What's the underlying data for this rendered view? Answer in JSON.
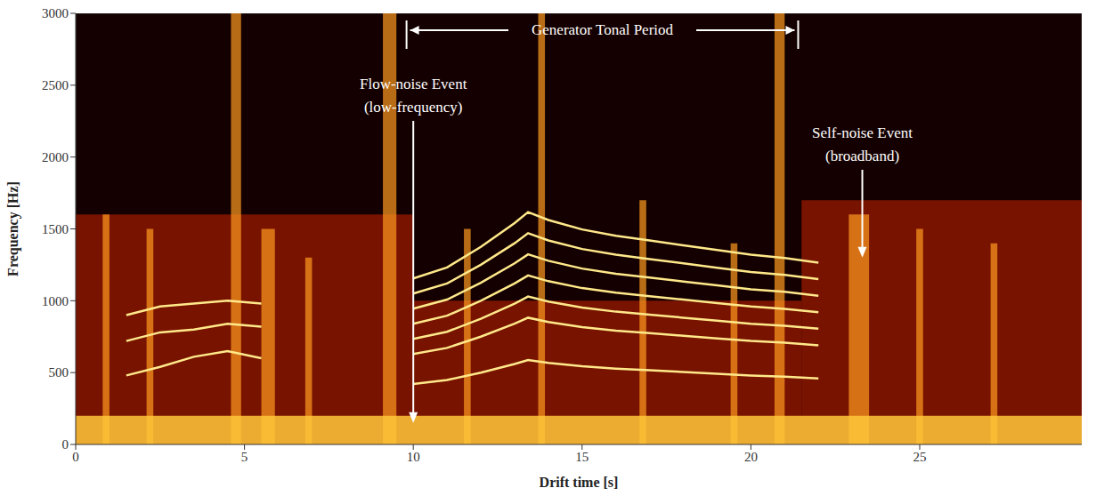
{
  "chart_data": {
    "type": "spectrogram",
    "xlabel": "Drift time [s]",
    "ylabel": "Frequency [Hz]",
    "xlim": [
      0,
      29.8
    ],
    "xticks": [
      0,
      5,
      10,
      15,
      20,
      25
    ],
    "ylim": [
      0,
      3000
    ],
    "yticks": [
      0,
      500,
      1000,
      1500,
      2000,
      2500,
      3000
    ],
    "grid": false,
    "period": {
      "text": "Generator Tonal Period",
      "start": 9.8,
      "end": 21.4
    },
    "annotations": [
      {
        "lines": [
          "Flow-noise Event",
          "(low-frequency)"
        ],
        "x": 10,
        "y": 150
      },
      {
        "lines": [
          "Self-noise Event",
          "(broadband)"
        ],
        "x": 23.3,
        "y": 1300
      }
    ],
    "noise_floor": [
      {
        "start": 0,
        "end": 10,
        "fmax": 1600
      },
      {
        "start": 10,
        "end": 21.5,
        "fmax": 1000
      },
      {
        "start": 21.5,
        "end": 29.8,
        "fmax": 1700
      }
    ],
    "low_frequency_band": {
      "start": 0,
      "end": 29.8,
      "fmax": 200
    },
    "noise_bursts": [
      {
        "start": 0.8,
        "end": 1.0,
        "fmax": 1600
      },
      {
        "start": 2.1,
        "end": 2.3,
        "fmax": 1500
      },
      {
        "start": 4.6,
        "end": 4.9,
        "fmax": 3000
      },
      {
        "start": 5.5,
        "end": 5.9,
        "fmax": 1500
      },
      {
        "start": 6.8,
        "end": 7.0,
        "fmax": 1300
      },
      {
        "start": 9.1,
        "end": 9.5,
        "fmax": 3000
      },
      {
        "start": 11.5,
        "end": 11.7,
        "fmax": 1500
      },
      {
        "start": 13.7,
        "end": 13.9,
        "fmax": 3000
      },
      {
        "start": 16.7,
        "end": 16.9,
        "fmax": 1700
      },
      {
        "start": 19.4,
        "end": 19.6,
        "fmax": 1400
      },
      {
        "start": 20.7,
        "end": 21.0,
        "fmax": 3000
      },
      {
        "start": 22.9,
        "end": 23.5,
        "fmax": 1600
      },
      {
        "start": 24.9,
        "end": 25.1,
        "fmax": 1500
      },
      {
        "start": 27.1,
        "end": 27.3,
        "fmax": 1400
      }
    ],
    "series": [
      {
        "color": "#ffe98a",
        "x": [
          10,
          11,
          12,
          13,
          13.4,
          14,
          15,
          16,
          17,
          18,
          19,
          20,
          21,
          22
        ],
        "values": [
          420,
          448,
          500,
          560,
          588,
          568,
          544,
          528,
          516,
          504,
          492,
          480,
          472,
          460
        ]
      },
      {
        "color": "#ffe98a",
        "x": [
          10,
          11,
          12,
          13,
          13.4,
          14,
          15,
          16,
          17,
          18,
          19,
          20,
          21,
          22
        ],
        "values": [
          630,
          672,
          750,
          840,
          882,
          852,
          816,
          792,
          774,
          756,
          738,
          720,
          708,
          690
        ]
      },
      {
        "color": "#ffe98a",
        "x": [
          10,
          11,
          12,
          13,
          13.4,
          14,
          15,
          16,
          17,
          18,
          19,
          20,
          21,
          22
        ],
        "values": [
          735,
          784,
          875,
          980,
          1029,
          994,
          952,
          924,
          903,
          882,
          861,
          840,
          826,
          805
        ]
      },
      {
        "color": "#ffe98a",
        "x": [
          10,
          11,
          12,
          13,
          13.4,
          14,
          15,
          16,
          17,
          18,
          19,
          20,
          21,
          22
        ],
        "values": [
          840,
          896,
          1000,
          1120,
          1176,
          1136,
          1088,
          1056,
          1032,
          1008,
          984,
          960,
          944,
          920
        ]
      },
      {
        "color": "#ffe98a",
        "x": [
          10,
          11,
          12,
          13,
          13.4,
          14,
          15,
          16,
          17,
          18,
          19,
          20,
          21,
          22
        ],
        "values": [
          945,
          1008,
          1125,
          1260,
          1323,
          1278,
          1224,
          1188,
          1161,
          1134,
          1107,
          1080,
          1062,
          1035
        ]
      },
      {
        "color": "#ffe98a",
        "x": [
          10,
          11,
          12,
          13,
          13.4,
          14,
          15,
          16,
          17,
          18,
          19,
          20,
          21,
          22
        ],
        "values": [
          1050,
          1120,
          1250,
          1400,
          1470,
          1420,
          1360,
          1320,
          1290,
          1260,
          1230,
          1200,
          1180,
          1150
        ]
      },
      {
        "color": "#ffe98a",
        "x": [
          10,
          11,
          12,
          13,
          13.4,
          14,
          15,
          16,
          17,
          18,
          19,
          20,
          21,
          22
        ],
        "values": [
          1155,
          1232,
          1375,
          1540,
          1617,
          1562,
          1496,
          1452,
          1419,
          1386,
          1353,
          1320,
          1298,
          1265
        ]
      },
      {
        "color": "#ffe98a",
        "x": [
          1.5,
          2.5,
          3.5,
          4.5,
          5.5
        ],
        "values": [
          480,
          540,
          610,
          650,
          600
        ]
      },
      {
        "color": "#ffe98a",
        "x": [
          1.5,
          2.5,
          3.5,
          4.5,
          5.5
        ],
        "values": [
          720,
          780,
          800,
          840,
          820
        ]
      },
      {
        "color": "#ffe98a",
        "x": [
          1.5,
          2.5,
          3.5,
          4.5,
          5.5
        ],
        "values": [
          900,
          960,
          980,
          1000,
          980
        ]
      }
    ]
  }
}
